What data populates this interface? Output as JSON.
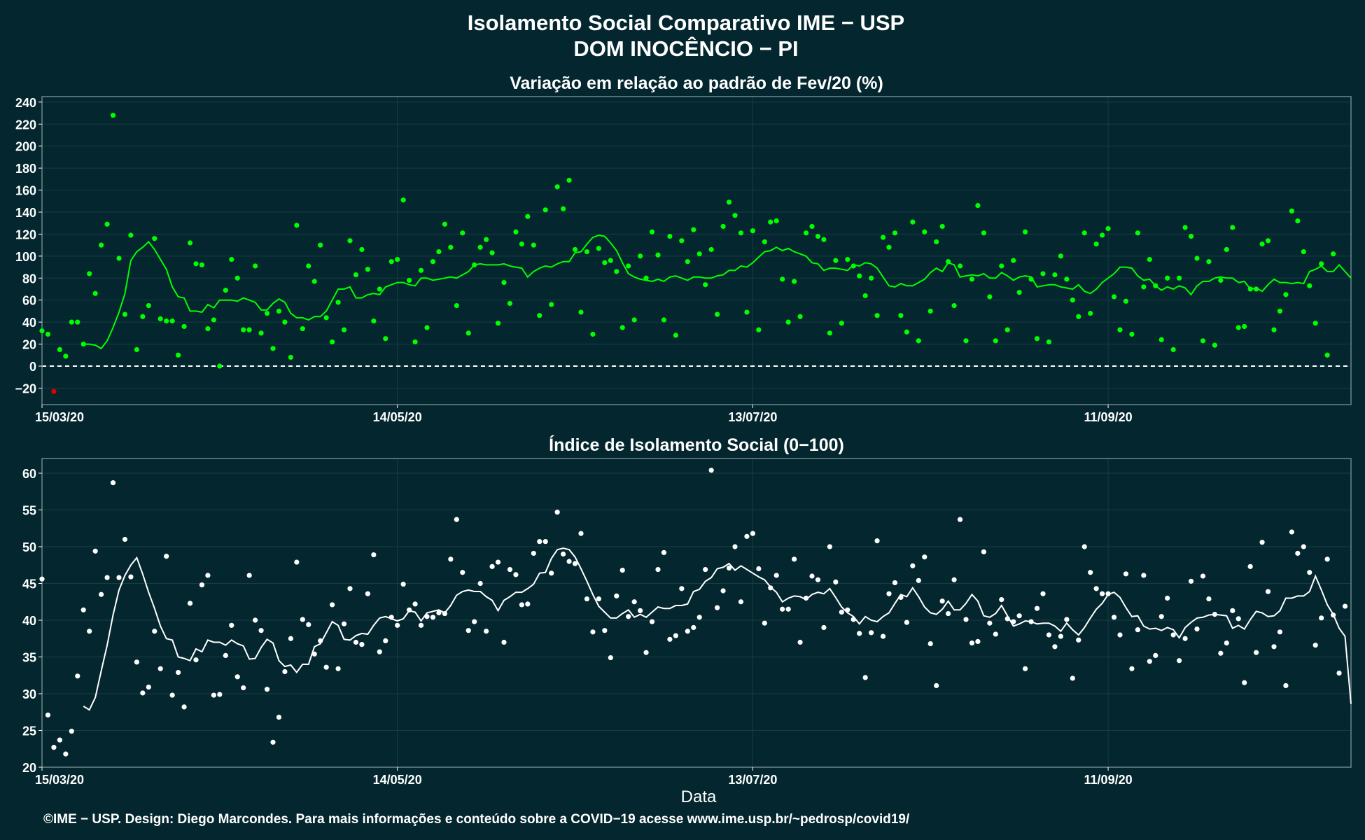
{
  "header": {
    "title": "Isolamento Social Comparativo IME − USP",
    "subtitle": "DOM INOCÊNCIO − PI"
  },
  "footer": {
    "xlabel": "Data",
    "credits": "©IME − USP. Design: Diego Marcondes. Para mais informações e conteúdo sobre a COVID−19 acesse www.ime.usp.br/~pedrosp/covid19/"
  },
  "colors": {
    "background": "#03262f",
    "panel_border": "#6e858b",
    "grid": "#1b3c45",
    "variation_series": "#00ff00",
    "variation_negative": "#e00000",
    "index_series": "#ffffff"
  },
  "chart_data": [
    {
      "type": "scatter",
      "title": "Variação em relação ao padrão de Fev/20 (%)",
      "xlabel": "",
      "ylabel": "",
      "x_start": "15/03/20",
      "x_end": "22/10/20",
      "xticks": [
        "15/03/20",
        "14/05/20",
        "13/07/20",
        "11/09/20"
      ],
      "ylim": [
        -35,
        245
      ],
      "yticks": [
        -20,
        0,
        20,
        40,
        60,
        80,
        100,
        120,
        140,
        160,
        180,
        200,
        220,
        240
      ],
      "reference_line": 0,
      "grid": true,
      "legend": "none",
      "series": [
        {
          "kind": "points",
          "values": [
            32,
            29,
            -23,
            15,
            9,
            40,
            40,
            20,
            84,
            66,
            110,
            129,
            228,
            98,
            47,
            119,
            15,
            45,
            55,
            116,
            43,
            41,
            41,
            10,
            36,
            112,
            93,
            92,
            34,
            42,
            0,
            69,
            97,
            80,
            33,
            33,
            91,
            30,
            48,
            16,
            50,
            40,
            8,
            128,
            34,
            91,
            77,
            110,
            44,
            22,
            58,
            33,
            114,
            83,
            106,
            88,
            41,
            70,
            25,
            95,
            97,
            151,
            78,
            22,
            87,
            35,
            95,
            104,
            129,
            108,
            55,
            121,
            30,
            92,
            108,
            115,
            103,
            39,
            76,
            57,
            122,
            111,
            136,
            110,
            46,
            142,
            56,
            163,
            143,
            169,
            106,
            49,
            104,
            29,
            107,
            94,
            96,
            86,
            35,
            91,
            42,
            100,
            80,
            122,
            101,
            42,
            118,
            28,
            114,
            95,
            124,
            102,
            74,
            106,
            47,
            127,
            149,
            137,
            121,
            49,
            123,
            33,
            113,
            131,
            132,
            79,
            40,
            77,
            45,
            121,
            127,
            118,
            115,
            30,
            96,
            39,
            97,
            91,
            82,
            64,
            80,
            46,
            117,
            108,
            121,
            46,
            31,
            131,
            23,
            122,
            50,
            113,
            127,
            95,
            55,
            91,
            23,
            79,
            146,
            121,
            63,
            23,
            91,
            33,
            96,
            67,
            122,
            79,
            25,
            84,
            22,
            83,
            100,
            79,
            60,
            45,
            121,
            48,
            111,
            119,
            125,
            63,
            33,
            59,
            29,
            121,
            72,
            97,
            73,
            24,
            80,
            15,
            80,
            126,
            118,
            98,
            23,
            95,
            19,
            78,
            106,
            126,
            35,
            36,
            70,
            70,
            111,
            114,
            33,
            50,
            65,
            141,
            132,
            104,
            73,
            39,
            93,
            10,
            102
          ]
        },
        {
          "kind": "moving_average",
          "values": [
            20,
            20,
            19,
            16,
            23,
            35,
            49,
            66,
            96,
            104,
            108,
            113,
            106,
            97,
            88,
            72,
            63,
            62,
            50,
            50,
            49,
            56,
            53,
            60,
            60,
            60,
            59,
            62,
            60,
            58,
            51,
            51,
            57,
            61,
            58,
            48,
            44,
            44,
            42,
            45,
            45,
            50,
            60,
            70,
            70,
            72,
            62,
            62,
            65,
            66,
            65,
            72,
            74,
            76,
            76,
            74,
            73,
            80,
            80,
            78,
            79,
            80,
            81,
            80,
            83,
            86,
            92,
            93,
            92,
            92,
            92,
            93,
            91,
            90,
            89,
            81,
            86,
            89,
            91,
            90,
            93,
            95,
            95,
            103,
            104,
            111,
            117,
            119,
            118,
            112,
            105,
            94,
            84,
            81,
            79,
            78,
            77,
            79,
            77,
            81,
            82,
            80,
            78,
            81,
            81,
            80,
            80,
            82,
            83,
            87,
            87,
            91,
            90,
            94,
            99,
            104,
            105,
            108,
            105,
            107,
            104,
            102,
            100,
            94,
            93,
            87,
            89,
            89,
            88,
            87,
            92,
            91,
            94,
            93,
            89,
            81,
            73,
            72,
            75,
            73,
            73,
            76,
            79,
            85,
            89,
            86,
            94,
            92,
            81,
            82,
            83,
            82,
            84,
            80,
            80,
            85,
            82,
            78,
            81,
            82,
            81,
            72,
            73,
            74,
            74,
            72,
            71,
            70,
            74,
            68,
            66,
            70,
            76,
            80,
            84,
            90,
            90,
            89,
            82,
            78,
            79,
            73,
            69,
            72,
            70,
            73,
            71,
            65,
            73,
            77,
            77,
            80,
            81,
            80,
            80,
            76,
            77,
            70,
            71,
            68,
            74,
            79,
            76,
            76,
            75,
            76,
            75,
            86,
            88,
            91,
            86,
            86,
            92,
            86,
            80
          ]
        }
      ]
    },
    {
      "type": "scatter",
      "title": "Índice de Isolamento Social (0−100)",
      "xlabel": "Data",
      "ylabel": "",
      "x_start": "15/03/20",
      "x_end": "22/10/20",
      "xticks": [
        "15/03/20",
        "14/05/20",
        "13/07/20",
        "11/09/20"
      ],
      "ylim": [
        20,
        62
      ],
      "yticks": [
        20,
        25,
        30,
        35,
        40,
        45,
        50,
        55,
        60
      ],
      "grid": true,
      "legend": "none",
      "series": [
        {
          "kind": "points",
          "values": [
            45.6,
            27.1,
            22.7,
            23.7,
            21.8,
            24.9,
            32.4,
            41.4,
            38.5,
            49.4,
            43.5,
            45.8,
            58.7,
            45.8,
            51.0,
            45.9,
            34.3,
            30.1,
            30.9,
            38.5,
            33.4,
            48.7,
            29.8,
            32.9,
            28.2,
            42.3,
            34.6,
            44.8,
            46.1,
            29.8,
            29.9,
            35.2,
            39.3,
            32.3,
            30.8,
            46.1,
            40.0,
            38.6,
            30.6,
            23.4,
            26.8,
            33.0,
            37.5,
            47.9,
            40.1,
            39.4,
            35.4,
            37.2,
            33.6,
            42.1,
            33.4,
            39.5,
            44.3,
            37.0,
            36.7,
            43.6,
            48.9,
            35.7,
            37.2,
            40.4,
            39.3,
            44.9,
            41.4,
            42.2,
            39.3,
            40.5,
            40.4,
            41.0,
            40.9,
            48.3,
            53.7,
            46.5,
            38.6,
            39.8,
            45.0,
            38.5,
            47.3,
            47.9,
            37.0,
            46.9,
            46.2,
            42.1,
            42.2,
            49.1,
            50.7,
            50.7,
            46.4,
            54.7,
            49.0,
            48.0,
            47.7,
            51.8,
            42.9,
            38.4,
            42.9,
            38.6,
            34.9,
            43.3,
            46.8,
            40.5,
            42.5,
            41.3,
            35.6,
            39.8,
            46.9,
            49.2,
            37.4,
            37.9,
            44.3,
            38.5,
            39.0,
            40.4,
            46.9,
            60.4,
            41.7,
            44.0,
            47.1,
            50.0,
            42.5,
            51.4,
            51.8,
            47.0,
            39.6,
            44.4,
            46.1,
            41.5,
            41.5,
            48.3,
            37.0,
            43.0,
            46.0,
            45.5,
            39.0,
            50.0,
            45.2,
            41.1,
            41.4,
            40.1,
            38.2,
            32.2,
            38.3,
            50.8,
            37.8,
            43.6,
            45.1,
            43.1,
            39.7,
            47.4,
            45.4,
            48.6,
            36.8,
            31.1,
            42.6,
            40.9,
            45.5,
            53.7,
            40.1,
            36.9,
            37.1,
            49.3,
            39.6,
            38.1,
            42.8,
            40.2,
            39.8,
            40.6,
            33.4,
            39.8,
            41.6,
            43.6,
            38.0,
            36.4,
            37.8,
            40.1,
            32.1,
            37.3,
            50.0,
            46.5,
            44.3,
            43.6,
            43.6,
            40.4,
            38.0,
            46.3,
            33.4,
            38.7,
            46.1,
            34.4,
            35.2,
            40.5,
            43.0,
            38.0,
            34.5,
            37.5,
            45.3,
            38.8,
            46.0,
            42.9,
            40.8,
            35.5,
            36.9,
            41.3,
            40.2,
            31.5,
            47.3,
            35.6,
            50.6,
            43.9,
            36.4,
            38.4,
            31.1,
            52.0,
            49.1,
            50.0,
            46.5,
            36.6,
            40.3,
            48.3,
            40.7,
            32.8,
            41.9
          ]
        },
        {
          "kind": "moving_average",
          "values": [
            28.3,
            27.8,
            29.5,
            33.1,
            36.6,
            40.7,
            44.1,
            46.1,
            47.5,
            48.5,
            46.3,
            43.8,
            41.6,
            39.2,
            37.5,
            37.3,
            35.0,
            34.8,
            34.5,
            36.1,
            35.7,
            37.3,
            37.0,
            37.0,
            36.6,
            37.3,
            36.8,
            36.5,
            34.7,
            34.8,
            36.3,
            37.4,
            36.9,
            34.5,
            33.7,
            33.9,
            32.9,
            34.0,
            34.0,
            36.4,
            36.8,
            38.3,
            39.8,
            39.3,
            37.4,
            37.3,
            37.9,
            38.2,
            38.1,
            39.3,
            40.3,
            40.5,
            40.2,
            39.9,
            40.2,
            41.3,
            41.1,
            39.9,
            41.0,
            41.2,
            41.4,
            41.0,
            42.0,
            43.4,
            43.9,
            44.1,
            43.9,
            43.9,
            43.2,
            42.7,
            41.3,
            42.7,
            43.2,
            43.8,
            43.8,
            44.3,
            44.9,
            46.4,
            46.5,
            48.4,
            49.6,
            49.8,
            49.6,
            48.6,
            47.0,
            45.3,
            43.5,
            41.9,
            41.1,
            40.3,
            40.3,
            40.9,
            41.4,
            40.4,
            40.8,
            40.4,
            41.1,
            41.8,
            41.6,
            41.6,
            42.0,
            42.0,
            42.2,
            43.9,
            44.2,
            45.3,
            45.8,
            47.0,
            47.2,
            47.7,
            46.8,
            47.4,
            46.9,
            46.4,
            45.9,
            45.5,
            44.5,
            43.8,
            42.5,
            43.0,
            43.3,
            43.2,
            42.8,
            43.5,
            43.8,
            43.6,
            44.3,
            43.1,
            41.8,
            41.0,
            40.5,
            39.5,
            40.5,
            40.0,
            39.8,
            40.5,
            41.0,
            42.3,
            43.5,
            43.2,
            44.4,
            43.2,
            41.8,
            41.0,
            40.8,
            41.5,
            42.6,
            41.4,
            41.4,
            42.3,
            43.5,
            42.6,
            40.6,
            40.4,
            40.9,
            42.0,
            40.6,
            39.2,
            39.5,
            39.9,
            39.8,
            39.5,
            39.6,
            39.6,
            39.2,
            38.5,
            39.6,
            38.7,
            38.0,
            39.0,
            40.3,
            41.5,
            42.3,
            43.5,
            43.8,
            43.1,
            41.7,
            40.5,
            40.6,
            39.2,
            38.8,
            38.9,
            38.6,
            39.0,
            38.7,
            37.6,
            39.0,
            39.7,
            40.3,
            40.4,
            40.7,
            40.8,
            40.7,
            40.6,
            38.9,
            39.3,
            38.8,
            40.1,
            41.2,
            41.0,
            40.5,
            40.6,
            41.3,
            43.0,
            43.0,
            43.3,
            43.3,
            43.9,
            46.0,
            44.1,
            42.1,
            40.8,
            38.9,
            37.8,
            28.6
          ]
        }
      ]
    }
  ]
}
